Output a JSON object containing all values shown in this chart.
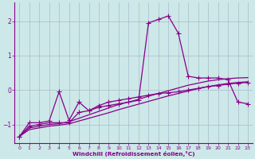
{
  "xlabel": "Windchill (Refroidissement éolien,°C)",
  "bg_color": "#cce8e8",
  "line_color": "#880088",
  "grid_color": "#aabbcc",
  "xlim": [
    -0.5,
    23.5
  ],
  "ylim": [
    -1.55,
    2.55
  ],
  "yticks": [
    -1,
    0,
    1,
    2
  ],
  "xticks": [
    0,
    1,
    2,
    3,
    4,
    5,
    6,
    7,
    8,
    9,
    10,
    11,
    12,
    13,
    14,
    15,
    16,
    17,
    18,
    19,
    20,
    21,
    22,
    23
  ],
  "series_peaked_x": [
    0,
    1,
    2,
    3,
    4,
    5,
    6,
    7,
    8,
    9,
    10,
    11,
    12,
    13,
    14,
    15,
    16,
    17,
    18,
    19,
    20,
    21,
    22,
    23
  ],
  "series_peaked_y": [
    -1.35,
    -1.05,
    -1.0,
    -0.95,
    -0.95,
    -0.95,
    -0.65,
    -0.6,
    -0.5,
    -0.45,
    -0.4,
    -0.35,
    -0.3,
    1.95,
    2.05,
    2.15,
    1.65,
    0.4,
    0.35,
    0.35,
    0.35,
    0.3,
    -0.35,
    -0.4
  ],
  "series_wavy_x": [
    0,
    1,
    2,
    3,
    4,
    5,
    6,
    7,
    8,
    9,
    10,
    11,
    12,
    13,
    14,
    15,
    16,
    17,
    18,
    19,
    20,
    21,
    22,
    23
  ],
  "series_wavy_y": [
    -1.35,
    -0.95,
    -0.95,
    -0.9,
    -0.05,
    -0.88,
    -0.35,
    -0.6,
    -0.45,
    -0.35,
    -0.3,
    -0.25,
    -0.2,
    -0.15,
    -0.1,
    -0.08,
    -0.05,
    -0.0,
    0.05,
    0.1,
    0.13,
    0.17,
    0.2,
    0.22
  ],
  "series_trend1_x": [
    0,
    1,
    2,
    3,
    4,
    5,
    6,
    7,
    8,
    9,
    10,
    11,
    12,
    13,
    14,
    15,
    16,
    17,
    18,
    19,
    20,
    21,
    22,
    23
  ],
  "series_trend1_y": [
    -1.35,
    -1.1,
    -1.05,
    -1.0,
    -0.98,
    -0.92,
    -0.82,
    -0.72,
    -0.62,
    -0.52,
    -0.42,
    -0.35,
    -0.27,
    -0.18,
    -0.1,
    -0.02,
    0.06,
    0.14,
    0.2,
    0.26,
    0.3,
    0.33,
    0.35,
    0.36
  ],
  "series_trend2_x": [
    0,
    1,
    2,
    3,
    4,
    5,
    6,
    7,
    8,
    9,
    10,
    11,
    12,
    13,
    14,
    15,
    16,
    17,
    18,
    19,
    20,
    21,
    22,
    23
  ],
  "series_trend2_y": [
    -1.35,
    -1.15,
    -1.1,
    -1.05,
    -1.02,
    -0.98,
    -0.9,
    -0.82,
    -0.74,
    -0.66,
    -0.57,
    -0.49,
    -0.41,
    -0.33,
    -0.25,
    -0.17,
    -0.1,
    -0.03,
    0.04,
    0.1,
    0.15,
    0.19,
    0.22,
    0.24
  ]
}
